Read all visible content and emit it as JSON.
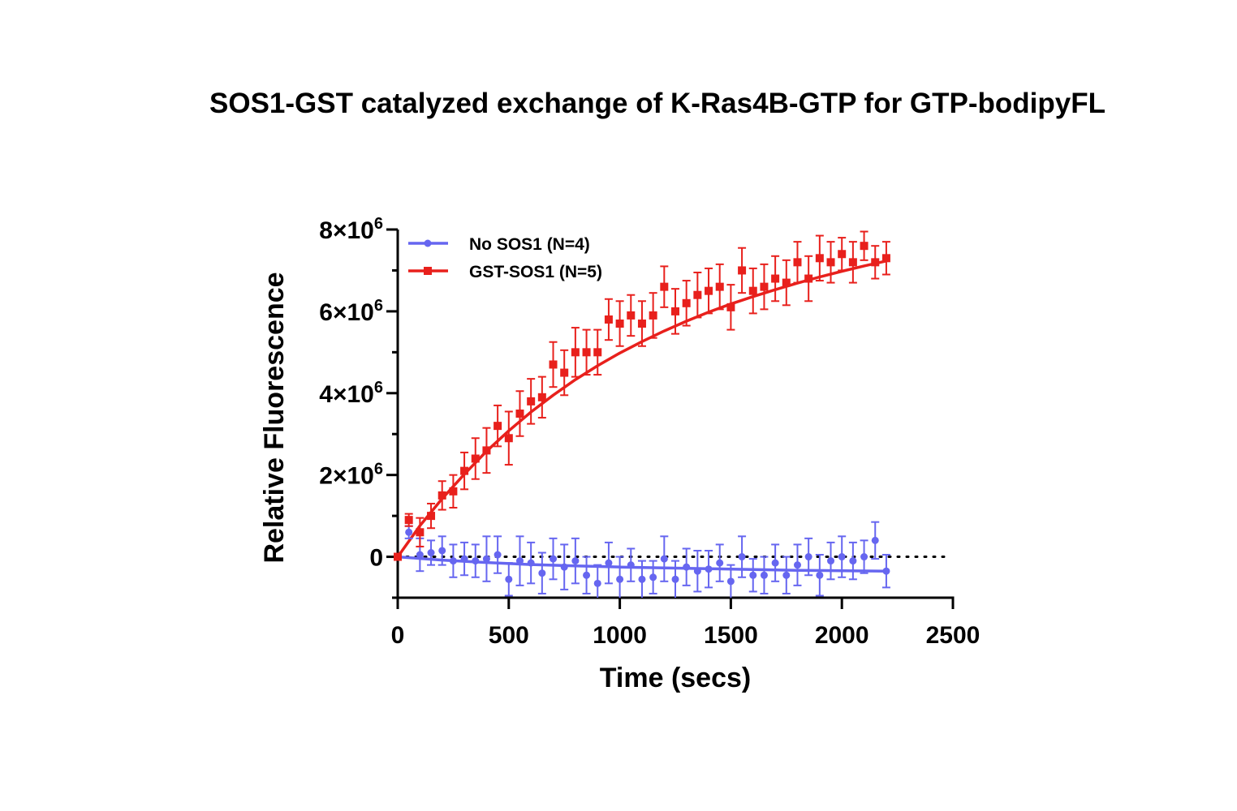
{
  "chart_data": {
    "type": "scatter",
    "title": "SOS1-GST catalyzed exchange of K-Ras4B-GTP for GTP-bodipyFL",
    "xlabel": "Time (secs)",
    "ylabel": "Relative Fluorescence",
    "xlim": [
      0,
      2500
    ],
    "ylim": [
      -1000000,
      8000000
    ],
    "x_ticks": [
      0,
      500,
      1000,
      1500,
      2000,
      2500
    ],
    "x_tick_labels": [
      "0",
      "500",
      "1000",
      "1500",
      "2000",
      "2500"
    ],
    "y_ticks": [
      0,
      2000000,
      4000000,
      6000000,
      8000000
    ],
    "y_tick_labels": [
      {
        "base": "0",
        "exp": ""
      },
      {
        "base": "2×10",
        "exp": "6"
      },
      {
        "base": "4×10",
        "exp": "6"
      },
      {
        "base": "6×10",
        "exp": "6"
      },
      {
        "base": "8×10",
        "exp": "6"
      }
    ],
    "reference_line": {
      "y": 0,
      "style": "dotted"
    },
    "legend_position": "top-left",
    "series": [
      {
        "name": "No SOS1 (N=4)",
        "color": "#6666f0",
        "marker": "circle",
        "x": [
          0,
          50,
          100,
          150,
          200,
          250,
          300,
          350,
          400,
          450,
          500,
          550,
          600,
          650,
          700,
          750,
          800,
          850,
          900,
          950,
          1000,
          1050,
          1100,
          1150,
          1200,
          1250,
          1300,
          1350,
          1400,
          1450,
          1500,
          1550,
          1600,
          1650,
          1700,
          1750,
          1800,
          1850,
          1900,
          1950,
          2000,
          2050,
          2100,
          2150,
          2200
        ],
        "y": [
          0,
          600000,
          50000,
          100000,
          150000,
          -100000,
          -50000,
          -100000,
          -50000,
          50000,
          -550000,
          -100000,
          -150000,
          -400000,
          -50000,
          -250000,
          -100000,
          -450000,
          -650000,
          -150000,
          -550000,
          -200000,
          -550000,
          -500000,
          -50000,
          -550000,
          -250000,
          -350000,
          -300000,
          -150000,
          -600000,
          0,
          -450000,
          -450000,
          -150000,
          -450000,
          -200000,
          0,
          -450000,
          -100000,
          0,
          -100000,
          0,
          400000,
          -350000
        ],
        "err": [
          0,
          150000,
          400000,
          300000,
          350000,
          400000,
          400000,
          400000,
          550000,
          450000,
          400000,
          600000,
          500000,
          500000,
          500000,
          550000,
          550000,
          450000,
          450000,
          500000,
          550000,
          400000,
          450000,
          400000,
          550000,
          450000,
          450000,
          500000,
          450000,
          450000,
          400000,
          500000,
          400000,
          450000,
          450000,
          450000,
          500000,
          450000,
          500000,
          450000,
          500000,
          450000,
          400000,
          450000,
          400000
        ],
        "fit": {
          "x": [
            0,
            100,
            200,
            400,
            600,
            800,
            1000,
            1200,
            1400,
            1600,
            1800,
            2000,
            2200
          ],
          "y": [
            0,
            -40000,
            -80000,
            -140000,
            -190000,
            -220000,
            -250000,
            -270000,
            -290000,
            -310000,
            -330000,
            -340000,
            -350000
          ]
        }
      },
      {
        "name": "GST-SOS1 (N=5)",
        "color": "#e8201c",
        "marker": "square",
        "x": [
          0,
          50,
          100,
          150,
          200,
          250,
          300,
          350,
          400,
          450,
          500,
          550,
          600,
          650,
          700,
          750,
          800,
          850,
          900,
          950,
          1000,
          1050,
          1100,
          1150,
          1200,
          1250,
          1300,
          1350,
          1400,
          1450,
          1500,
          1550,
          1600,
          1650,
          1700,
          1750,
          1800,
          1850,
          1900,
          1950,
          2000,
          2050,
          2100,
          2150,
          2200
        ],
        "y": [
          0,
          900000,
          600000,
          1000000,
          1500000,
          1600000,
          2100000,
          2400000,
          2600000,
          3200000,
          2900000,
          3500000,
          3800000,
          3900000,
          4700000,
          4500000,
          5000000,
          5000000,
          5000000,
          5800000,
          5700000,
          5900000,
          5700000,
          5900000,
          6600000,
          6000000,
          6200000,
          6400000,
          6500000,
          6600000,
          6100000,
          7000000,
          6500000,
          6600000,
          6800000,
          6700000,
          7200000,
          6800000,
          7300000,
          7200000,
          7400000,
          7200000,
          7600000,
          7200000,
          7300000
        ],
        "err": [
          0,
          150000,
          350000,
          300000,
          350000,
          400000,
          450000,
          500000,
          550000,
          500000,
          650000,
          550000,
          550000,
          500000,
          550000,
          550000,
          600000,
          550000,
          550000,
          500000,
          550000,
          500000,
          550000,
          550000,
          500000,
          550000,
          550000,
          550000,
          550000,
          550000,
          550000,
          550000,
          550000,
          550000,
          550000,
          550000,
          500000,
          550000,
          550000,
          500000,
          400000,
          500000,
          350000,
          400000,
          400000
        ],
        "fit": {
          "x": [
            0,
            100,
            200,
            300,
            400,
            500,
            600,
            700,
            800,
            900,
            1000,
            1100,
            1200,
            1300,
            1400,
            1500,
            1600,
            1700,
            1800,
            1900,
            2000,
            2100,
            2200
          ],
          "y": [
            0,
            760000,
            1420000,
            2020000,
            2580000,
            3080000,
            3540000,
            3950000,
            4330000,
            4670000,
            4980000,
            5260000,
            5520000,
            5760000,
            5980000,
            6180000,
            6360000,
            6530000,
            6690000,
            6840000,
            6980000,
            7110000,
            7230000
          ]
        }
      }
    ]
  }
}
